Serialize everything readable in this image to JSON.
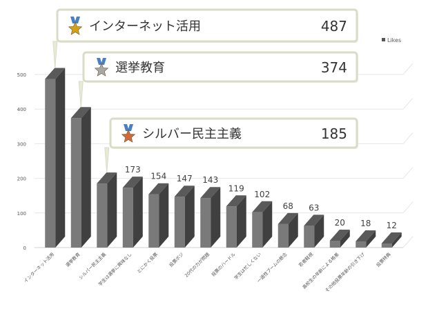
{
  "chart_data": {
    "type": "bar",
    "title": "",
    "xlabel": "",
    "ylabel": "",
    "ylim": [
      0,
      500
    ],
    "yticks": [
      0,
      100,
      200,
      300,
      400,
      500
    ],
    "grid": true,
    "legend": {
      "position": "top-right",
      "entries": [
        "Likes"
      ]
    },
    "categories": [
      "インターネット活用",
      "選挙教育",
      "シルバー民主主義",
      "学生は選挙に興味なし",
      "とにかく投票",
      "投票ボジ",
      "20代の力が問題",
      "投票のハードル",
      "学生は忙しくない",
      "一過性ブームの懸念",
      "若者軽視",
      "高校生の年齢による格差",
      "その他投票年齢の引き下げ",
      "投票特典"
    ],
    "series": [
      {
        "name": "Likes",
        "values": [
          487,
          374,
          185,
          173,
          154,
          147,
          143,
          119,
          102,
          68,
          63,
          20,
          18,
          12
        ]
      }
    ],
    "data_labels": [
      "487",
      "374",
      "185",
      "173",
      "154",
      "147",
      "143",
      "119",
      "102",
      "68",
      "63",
      "20",
      "18",
      "12"
    ],
    "top_callouts": [
      {
        "rank": "gold",
        "icon": "gold-medal-icon",
        "label": "インターネット活用",
        "value": "487"
      },
      {
        "rank": "silver",
        "icon": "silver-medal-icon",
        "label": "選挙教育",
        "value": "374"
      },
      {
        "rank": "bronze",
        "icon": "bronze-medal-icon",
        "label": "シルバー民主主義",
        "value": "185"
      }
    ],
    "colors": {
      "bar_front": "#7a7a7a",
      "bar_side": "#404040",
      "bar_top": "#5a5a5a",
      "grid": "#e6e6e6",
      "label": "#404040",
      "callout_border": "#d9dcc6",
      "callout_fill": "#ffffff",
      "gold": "#d4a017",
      "silver": "#a8a8a8",
      "bronze": "#cf6a3a",
      "ribbon": "#4a7fc1"
    }
  }
}
